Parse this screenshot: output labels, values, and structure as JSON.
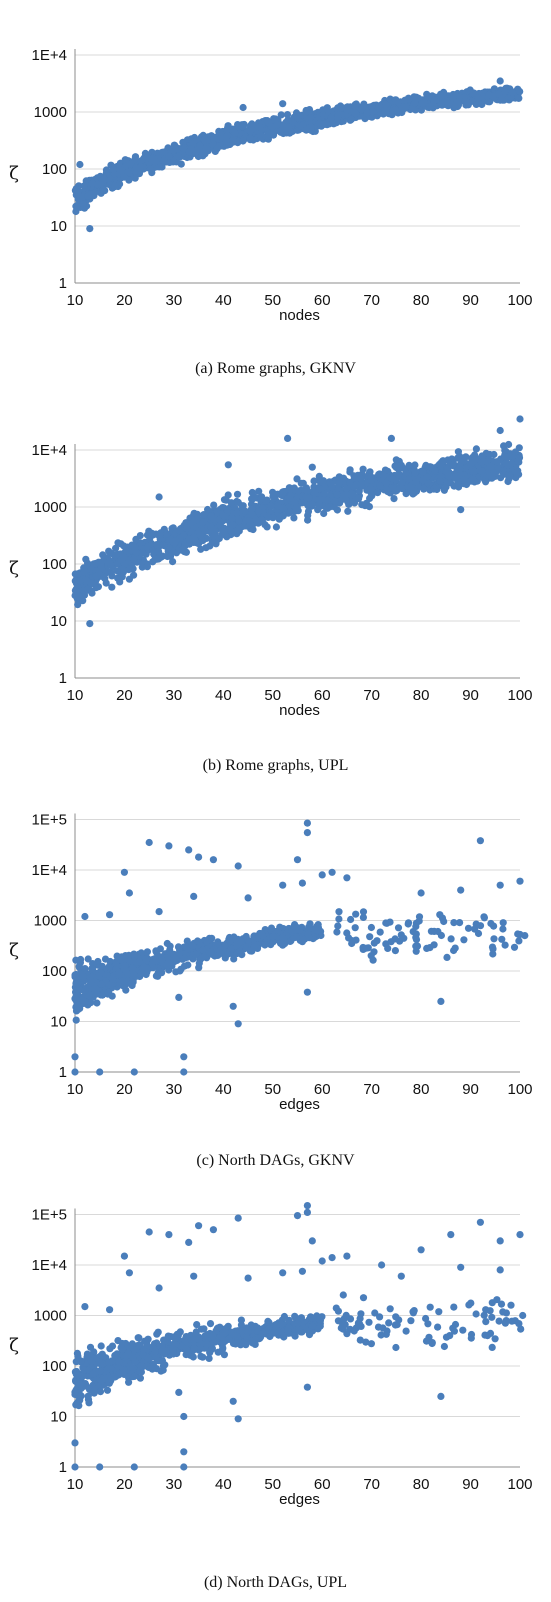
{
  "chart_data": [
    {
      "type": "scatter",
      "caption": "(a)  Rome graphs, GKNV",
      "xlabel": "nodes",
      "ylabel": "ζ",
      "scale": "log",
      "xlim": [
        10,
        100
      ],
      "ylim": [
        1,
        100000
      ],
      "xticks": [
        "10",
        "20",
        "30",
        "40",
        "50",
        "60",
        "70",
        "80",
        "90",
        "100"
      ],
      "yticks": [
        "1",
        "10",
        "100",
        "1000",
        "1E+4"
      ],
      "grid": true,
      "band": [
        [
          10,
          12,
          70
        ],
        [
          20,
          50,
          180
        ],
        [
          30,
          100,
          300
        ],
        [
          40,
          180,
          650
        ],
        [
          50,
          300,
          900
        ],
        [
          60,
          450,
          1300
        ],
        [
          70,
          700,
          1700
        ],
        [
          80,
          1000,
          2200
        ],
        [
          90,
          1200,
          2700
        ],
        [
          100,
          1300,
          3200
        ]
      ],
      "outliers": [
        [
          11,
          120
        ],
        [
          13,
          9
        ],
        [
          44,
          1200
        ],
        [
          52,
          1400
        ],
        [
          96,
          3500
        ]
      ]
    },
    {
      "type": "scatter",
      "caption": "(b)  Rome graphs, UPL",
      "xlabel": "nodes",
      "ylabel": "ζ",
      "scale": "log",
      "xlim": [
        10,
        100
      ],
      "ylim": [
        1,
        100000
      ],
      "xticks": [
        "10",
        "20",
        "30",
        "40",
        "50",
        "60",
        "70",
        "80",
        "90",
        "100"
      ],
      "yticks": [
        "1",
        "10",
        "100",
        "1000",
        "1E+4"
      ],
      "grid": true,
      "band": [
        [
          10,
          12,
          120
        ],
        [
          20,
          40,
          350
        ],
        [
          30,
          90,
          700
        ],
        [
          40,
          180,
          1800
        ],
        [
          50,
          350,
          3000
        ],
        [
          60,
          600,
          4500
        ],
        [
          70,
          900,
          6500
        ],
        [
          80,
          1300,
          9000
        ],
        [
          90,
          1800,
          12000
        ],
        [
          100,
          2200,
          16000
        ]
      ],
      "outliers": [
        [
          13,
          9
        ],
        [
          27,
          1500
        ],
        [
          41,
          5500
        ],
        [
          53,
          16000
        ],
        [
          58,
          5000
        ],
        [
          74,
          16000
        ],
        [
          88,
          900
        ],
        [
          96,
          22000
        ],
        [
          100,
          35000
        ]
      ]
    },
    {
      "type": "scatter",
      "caption": "(c)  North DAGs, GKNV",
      "xlabel": "edges",
      "ylabel": "ζ",
      "scale": "log",
      "xlim": [
        10,
        100
      ],
      "ylim": [
        1,
        100000
      ],
      "xticks": [
        "10",
        "20",
        "30",
        "40",
        "50",
        "60",
        "70",
        "80",
        "90",
        "100"
      ],
      "yticks": [
        "1",
        "10",
        "100",
        "1000",
        "1E+4",
        "1E+5"
      ],
      "grid": true,
      "band": [
        [
          10,
          8,
          200
        ],
        [
          20,
          30,
          300
        ],
        [
          30,
          80,
          450
        ],
        [
          40,
          150,
          600
        ],
        [
          50,
          250,
          800
        ],
        [
          60,
          400,
          1000
        ]
      ],
      "sparse": [
        [
          62,
          101,
          150,
          2000
        ]
      ],
      "outliers": [
        [
          10,
          1
        ],
        [
          15,
          1
        ],
        [
          22,
          1
        ],
        [
          32,
          1
        ],
        [
          32,
          2
        ],
        [
          10,
          2
        ],
        [
          25,
          35000
        ],
        [
          29,
          30000
        ],
        [
          33,
          25000
        ],
        [
          35,
          18000
        ],
        [
          38,
          16000
        ],
        [
          43,
          12000
        ],
        [
          57,
          85000
        ],
        [
          57,
          55000
        ],
        [
          55,
          16000
        ],
        [
          60,
          8000
        ],
        [
          62,
          9000
        ],
        [
          65,
          7000
        ],
        [
          92,
          38000
        ],
        [
          100,
          6000
        ],
        [
          84,
          25
        ],
        [
          57,
          38
        ],
        [
          43,
          9
        ],
        [
          42,
          20
        ],
        [
          31,
          30
        ],
        [
          21,
          3500
        ],
        [
          20,
          9000
        ],
        [
          12,
          1200
        ],
        [
          17,
          1300
        ],
        [
          27,
          1500
        ],
        [
          34,
          3000
        ],
        [
          45,
          2800
        ],
        [
          52,
          5000
        ],
        [
          56,
          5500
        ],
        [
          80,
          3500
        ],
        [
          88,
          4000
        ],
        [
          96,
          5000
        ]
      ]
    },
    {
      "type": "scatter",
      "caption": "(d)  North DAGs, UPL",
      "xlabel": "edges",
      "ylabel": "ζ",
      "scale": "log",
      "xlim": [
        10,
        100
      ],
      "ylim": [
        1,
        100000
      ],
      "xticks": [
        "10",
        "20",
        "30",
        "40",
        "50",
        "60",
        "70",
        "80",
        "90",
        "100"
      ],
      "yticks": [
        "1",
        "10",
        "100",
        "1000",
        "1E+4",
        "1E+5"
      ],
      "grid": true,
      "band": [
        [
          10,
          8,
          300
        ],
        [
          20,
          30,
          450
        ],
        [
          30,
          80,
          700
        ],
        [
          40,
          150,
          900
        ],
        [
          50,
          250,
          1100
        ],
        [
          60,
          400,
          1400
        ]
      ],
      "sparse": [
        [
          62,
          101,
          200,
          3000
        ]
      ],
      "outliers": [
        [
          10,
          1
        ],
        [
          15,
          1
        ],
        [
          22,
          1
        ],
        [
          32,
          1
        ],
        [
          32,
          2
        ],
        [
          32,
          10
        ],
        [
          10,
          3
        ],
        [
          25,
          45000
        ],
        [
          29,
          40000
        ],
        [
          33,
          28000
        ],
        [
          35,
          60000
        ],
        [
          38,
          50000
        ],
        [
          43,
          85000
        ],
        [
          57,
          150000
        ],
        [
          57,
          110000
        ],
        [
          55,
          95000
        ],
        [
          58,
          30000
        ],
        [
          60,
          12000
        ],
        [
          62,
          14000
        ],
        [
          65,
          15000
        ],
        [
          86,
          40000
        ],
        [
          92,
          70000
        ],
        [
          96,
          30000
        ],
        [
          100,
          40000
        ],
        [
          84,
          25
        ],
        [
          57,
          38
        ],
        [
          43,
          9
        ],
        [
          42,
          20
        ],
        [
          31,
          30
        ],
        [
          21,
          7000
        ],
        [
          20,
          15000
        ],
        [
          12,
          1500
        ],
        [
          17,
          1300
        ],
        [
          27,
          3500
        ],
        [
          34,
          6000
        ],
        [
          45,
          5500
        ],
        [
          52,
          7000
        ],
        [
          56,
          7500
        ],
        [
          80,
          20000
        ],
        [
          88,
          9000
        ],
        [
          96,
          8000
        ],
        [
          72,
          10000
        ],
        [
          76,
          6000
        ]
      ]
    }
  ]
}
